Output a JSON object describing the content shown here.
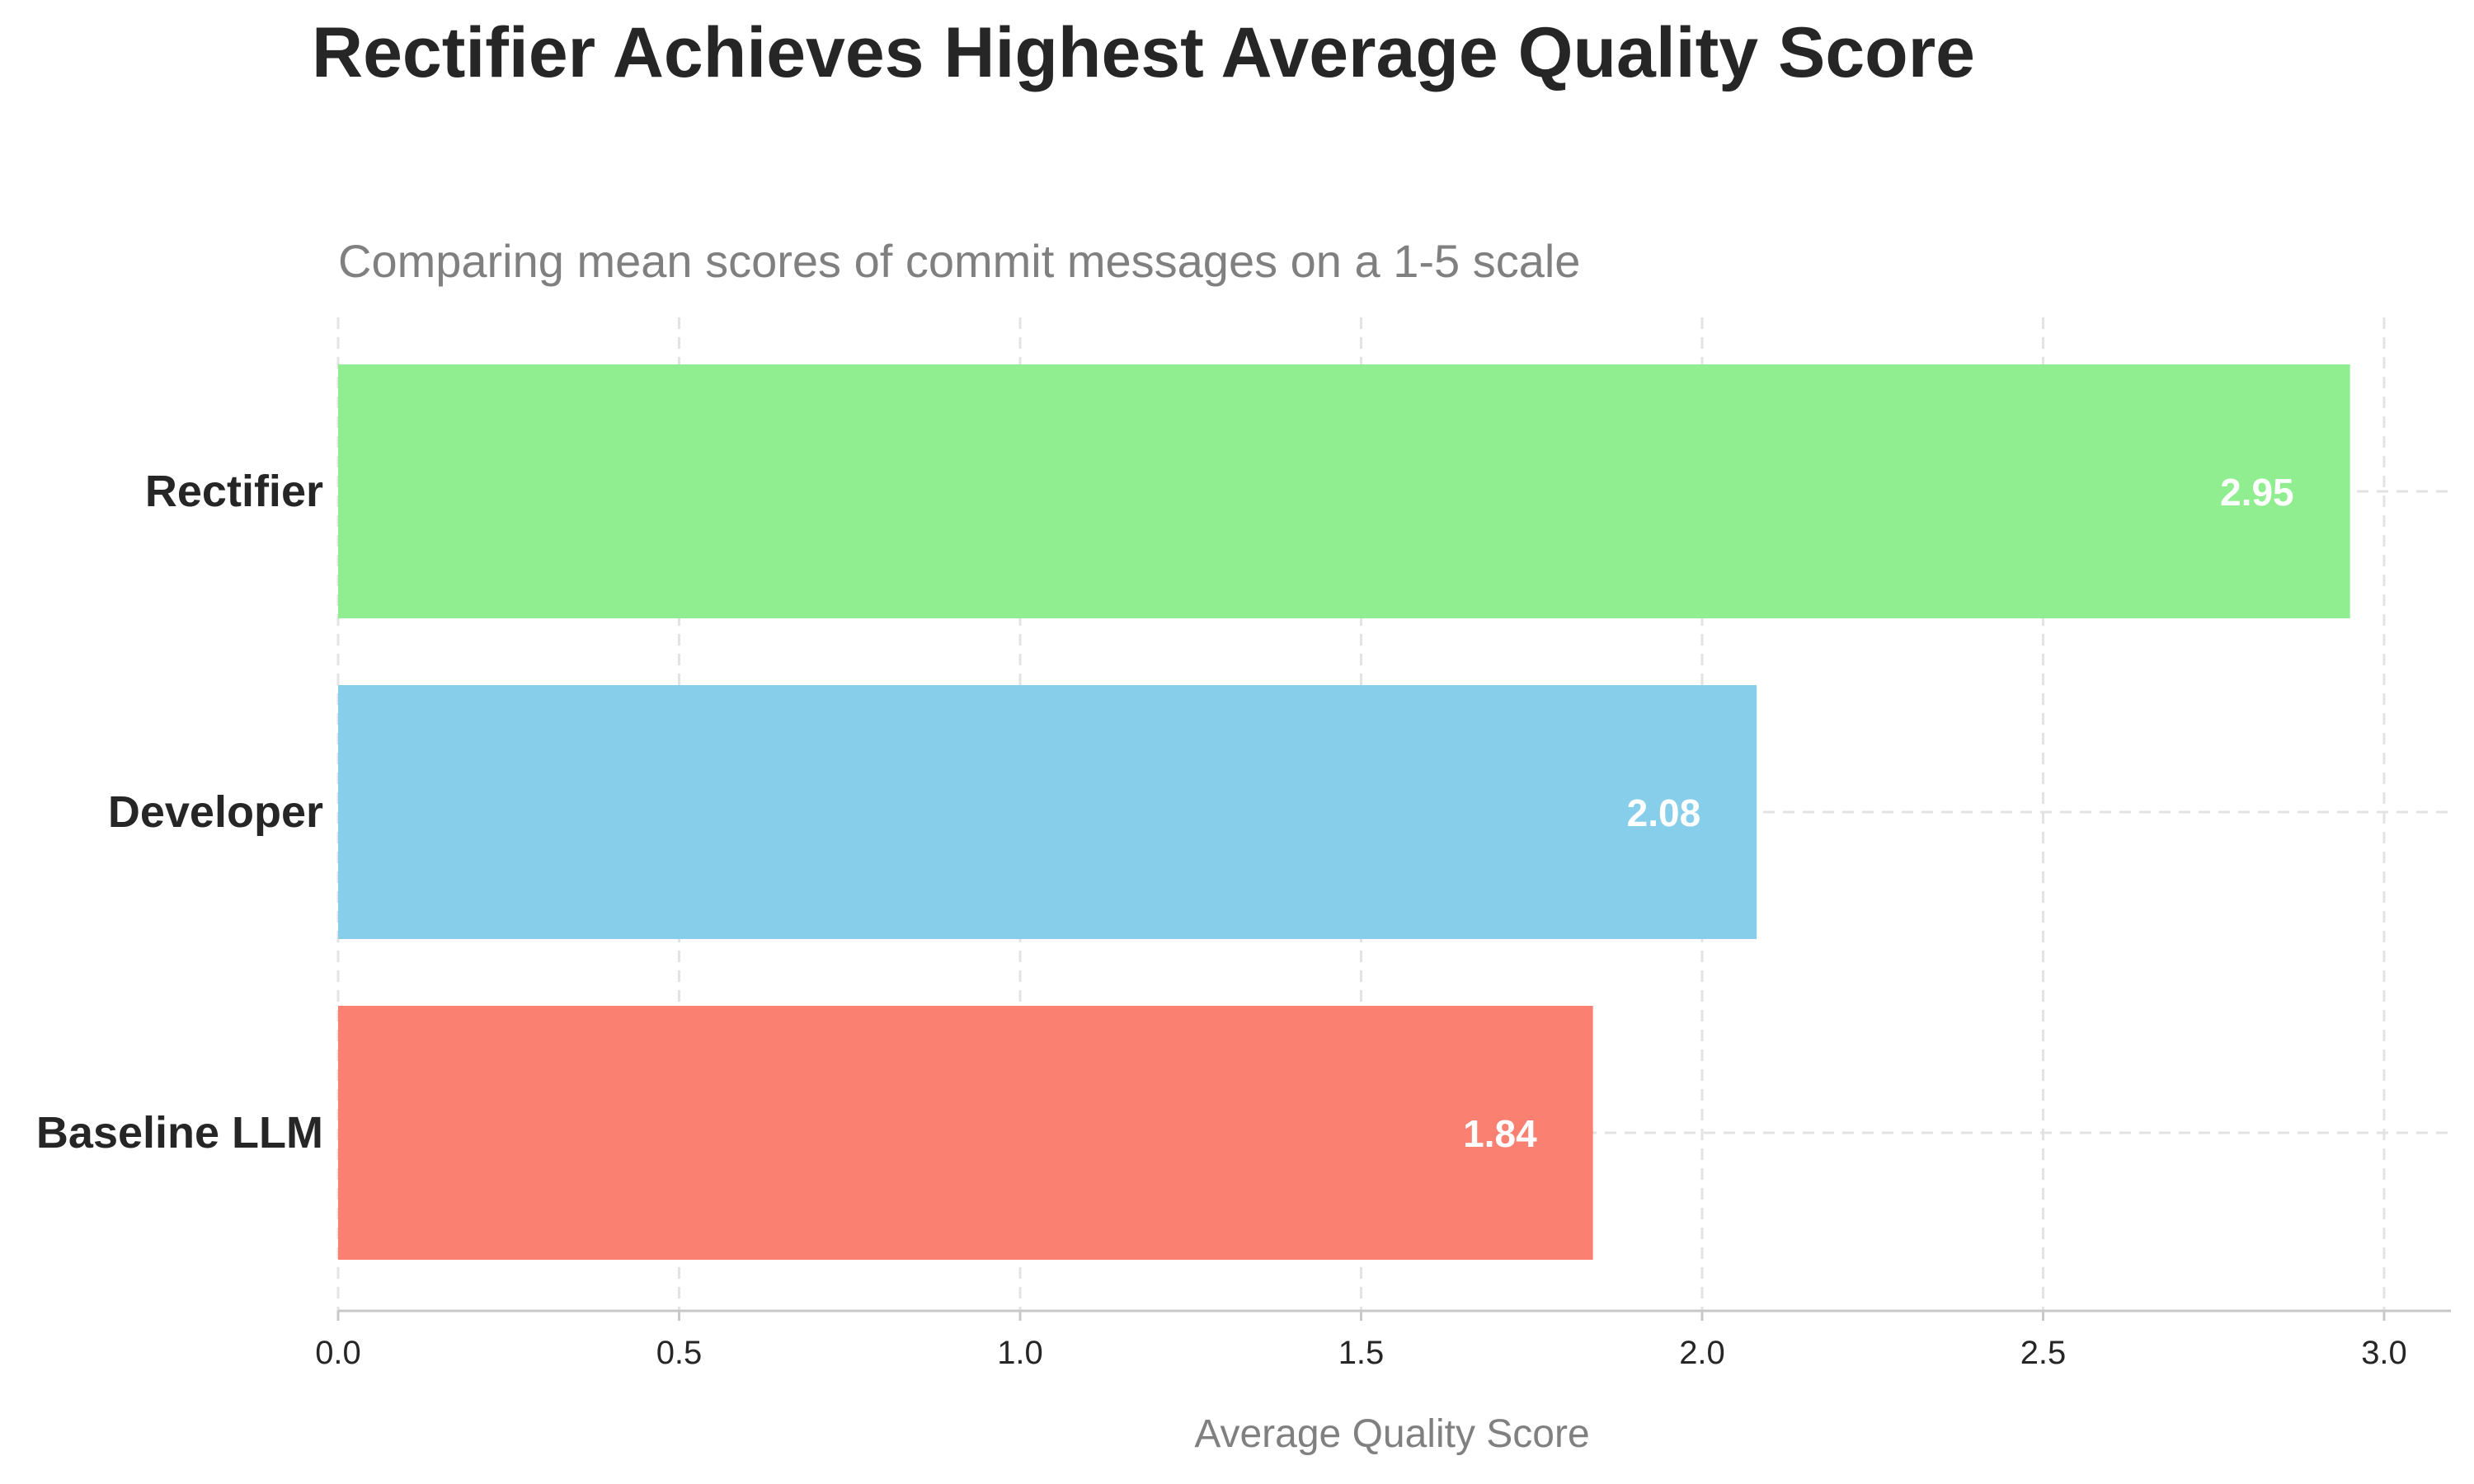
{
  "chart_data": {
    "type": "bar",
    "orientation": "horizontal",
    "title": "Rectifier Achieves Highest Average Quality Score",
    "subtitle": "Comparing mean scores of commit messages on a 1-5 scale",
    "xlabel": "Average Quality Score",
    "ylabel": "",
    "categories": [
      "Rectifier",
      "Developer",
      "Baseline LLM"
    ],
    "values": [
      2.95,
      2.08,
      1.84
    ],
    "value_labels": [
      "2.95",
      "2.08",
      "1.84"
    ],
    "colors": [
      "#90ee90",
      "#87ceeb",
      "#fa8072"
    ],
    "xlim": [
      0,
      3.1
    ],
    "xticks": [
      0.0,
      0.5,
      1.0,
      1.5,
      2.0,
      2.5,
      3.0
    ],
    "xtick_labels": [
      "0.0",
      "0.5",
      "1.0",
      "1.5",
      "2.0",
      "2.5",
      "3.0"
    ],
    "grid": true,
    "grid_style": "dashed"
  }
}
